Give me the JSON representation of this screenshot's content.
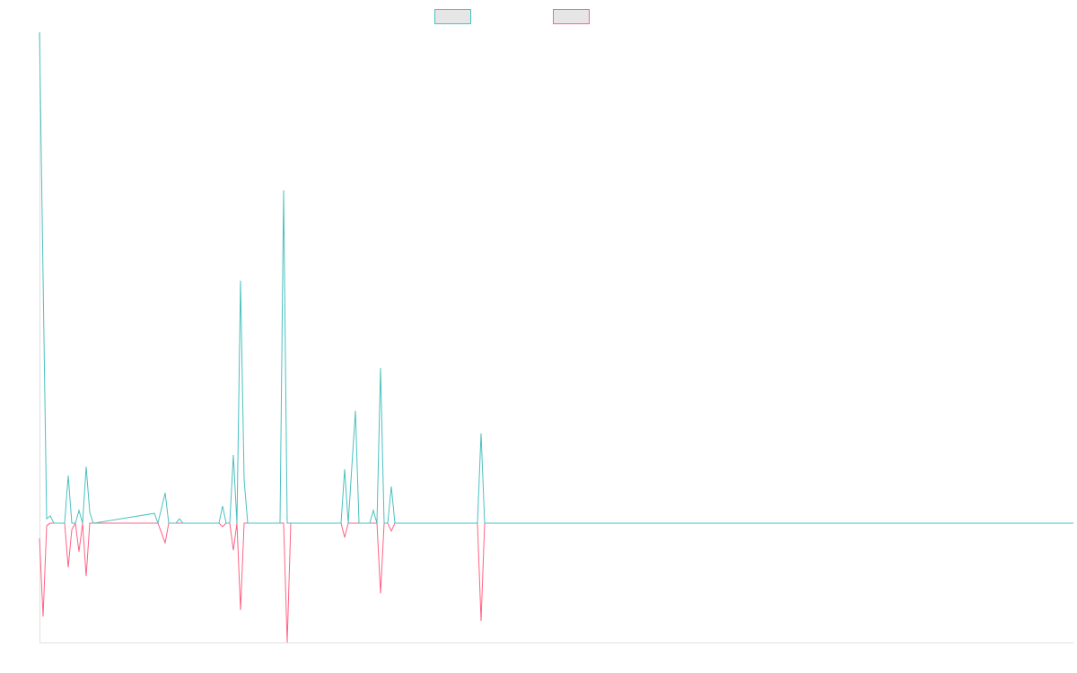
{
  "chart_data": {
    "type": "line",
    "legend": "top",
    "x": [
      0,
      1,
      2,
      3,
      4,
      7,
      8,
      9,
      10,
      11,
      12,
      13,
      14,
      15,
      32,
      33,
      35,
      36,
      38,
      39,
      40,
      50,
      51,
      52,
      53,
      54,
      55,
      56,
      57,
      58,
      67,
      68,
      69,
      70,
      84,
      85,
      86,
      88,
      89,
      92,
      93,
      94,
      95,
      96,
      97,
      98,
      99,
      122,
      123,
      124,
      288
    ],
    "series": [
      {
        "color": "#4bc0c0",
        "values": [
          10,
          5,
          0.09,
          0.15,
          0,
          0,
          0.97,
          0,
          0,
          0.26,
          0,
          1.15,
          0.22,
          0,
          0.2,
          0,
          0.62,
          0,
          0,
          0.09,
          0,
          0,
          0.35,
          0,
          0,
          1.39,
          0,
          4.94,
          0.88,
          0,
          0,
          6.78,
          0,
          0,
          0,
          1.1,
          0,
          2.29,
          0,
          0,
          0.26,
          0,
          3.16,
          0,
          0,
          0.75,
          0,
          0,
          1.83,
          0,
          0
        ]
      },
      {
        "color": "#ff6384",
        "values": [
          -0.31,
          -1.9,
          -0.05,
          0,
          0,
          0,
          -0.9,
          -0.13,
          0,
          -0.58,
          0,
          -1.08,
          0,
          0,
          0,
          0,
          -0.4,
          0,
          0,
          0,
          0,
          0,
          -0.07,
          0,
          0,
          -0.55,
          0,
          -1.77,
          0,
          0,
          0,
          0,
          -2.43,
          0,
          0,
          -0.29,
          0,
          0,
          0,
          0,
          0,
          0,
          -1.43,
          0,
          0,
          -0.16,
          0,
          0,
          -1.99,
          0,
          0
        ]
      }
    ],
    "xlim": [
      0,
      288
    ],
    "ylim": [
      -2.43,
      10
    ]
  }
}
